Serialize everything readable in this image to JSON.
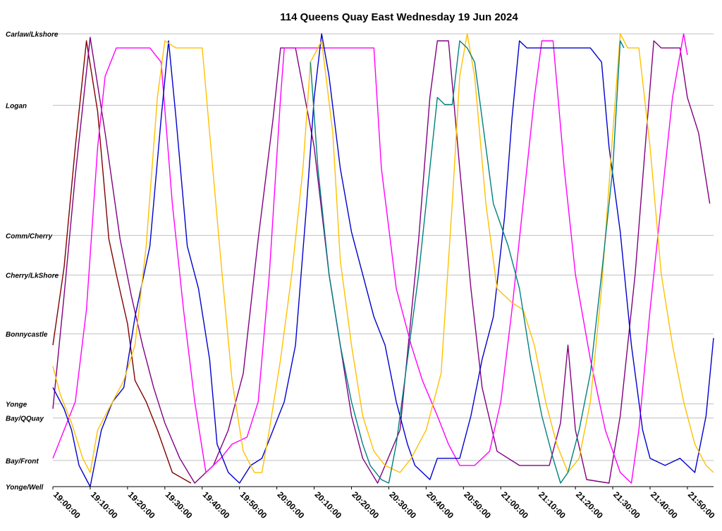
{
  "chart_data": {
    "type": "line",
    "title": "114 Queens Quay East Wednesday 19 Jun 2024",
    "xlabel": "",
    "ylabel": "",
    "x_axis": {
      "unit": "time",
      "range": [
        "19:00:00",
        "21:57:00"
      ],
      "ticks": [
        "19:00:00",
        "19:10:00",
        "19:20:00",
        "19:30:00",
        "19:40:00",
        "19:50:00",
        "20:00:00",
        "20:10:00",
        "20:20:00",
        "20:30:00",
        "20:40:00",
        "20:50:00",
        "21:00:00",
        "21:10:00",
        "21:20:00",
        "21:30:00",
        "21:40:00",
        "21:50:00"
      ]
    },
    "y_axis": {
      "type": "stops",
      "stops": [
        {
          "name": "Yonge/Well",
          "pos": 0
        },
        {
          "name": "Bay/Front",
          "pos": 3.7
        },
        {
          "name": "Bay/QQuay",
          "pos": 9.7
        },
        {
          "name": "Yonge",
          "pos": 11.7
        },
        {
          "name": "Bonnycastle",
          "pos": 21.6
        },
        {
          "name": "Cherry/LkShore",
          "pos": 29.9
        },
        {
          "name": "Comm/Cherry",
          "pos": 35.5
        },
        {
          "name": "Logan",
          "pos": 53.9
        },
        {
          "name": "Carlaw/Lkshore",
          "pos": 64
        }
      ],
      "ylim": [
        0,
        64
      ]
    },
    "grid": true,
    "legend": "none",
    "series": [
      {
        "color": "#800000",
        "points": [
          [
            "19:00",
            20
          ],
          [
            "19:03",
            31
          ],
          [
            "19:06",
            48
          ],
          [
            "19:09",
            63
          ],
          [
            "19:12",
            53
          ],
          [
            "19:15",
            35
          ],
          [
            "19:17",
            30
          ],
          [
            "19:20",
            23
          ],
          [
            "19:22",
            15
          ],
          [
            "19:25",
            12
          ],
          [
            "19:28",
            8
          ],
          [
            "19:32",
            2
          ],
          [
            "19:37",
            0.5
          ]
        ]
      },
      {
        "color": "#800080",
        "points": [
          [
            "19:00",
            11
          ],
          [
            "19:03",
            27
          ],
          [
            "19:06",
            44
          ],
          [
            "19:10",
            63.5
          ],
          [
            "19:14",
            50
          ],
          [
            "19:18",
            35
          ],
          [
            "19:21",
            27
          ],
          [
            "19:24",
            20
          ],
          [
            "19:27",
            14
          ],
          [
            "19:30",
            9
          ],
          [
            "19:34",
            4
          ],
          [
            "19:38",
            0.5
          ],
          [
            "19:43",
            3
          ],
          [
            "19:47",
            8
          ],
          [
            "19:51",
            16
          ],
          [
            "19:55",
            35
          ],
          [
            "19:59",
            52
          ],
          [
            "20:01",
            62
          ],
          [
            "20:05",
            62
          ],
          [
            "20:10",
            48
          ],
          [
            "20:14",
            30
          ],
          [
            "20:17",
            20
          ],
          [
            "20:20",
            10
          ],
          [
            "20:23",
            4
          ],
          [
            "20:27",
            0.5
          ],
          [
            "20:33",
            8
          ],
          [
            "20:38",
            35
          ],
          [
            "20:41",
            55
          ],
          [
            "20:43",
            63
          ],
          [
            "20:46",
            63
          ],
          [
            "20:49",
            45
          ],
          [
            "20:52",
            28
          ],
          [
            "20:55",
            14
          ],
          [
            "20:59",
            5
          ],
          [
            "21:05",
            3
          ],
          [
            "21:10",
            3
          ],
          [
            "21:13",
            3
          ],
          [
            "21:16",
            9
          ],
          [
            "21:18",
            20
          ],
          [
            "21:20",
            8
          ],
          [
            "21:23",
            1
          ],
          [
            "21:29",
            0.5
          ],
          [
            "21:32",
            10
          ],
          [
            "21:36",
            30
          ],
          [
            "21:39",
            50
          ],
          [
            "21:41",
            63
          ],
          [
            "21:43",
            62
          ],
          [
            "21:48",
            62
          ],
          [
            "21:50",
            55
          ],
          [
            "21:53",
            50
          ],
          [
            "21:56",
            40
          ]
        ]
      },
      {
        "color": "#ff00ff",
        "points": [
          [
            "19:00",
            4
          ],
          [
            "19:03",
            8
          ],
          [
            "19:06",
            12
          ],
          [
            "19:09",
            25
          ],
          [
            "19:12",
            48
          ],
          [
            "19:14",
            58
          ],
          [
            "19:17",
            62
          ],
          [
            "19:20",
            62
          ],
          [
            "19:23",
            62
          ],
          [
            "19:26",
            62
          ],
          [
            "19:29",
            60
          ],
          [
            "19:32",
            40
          ],
          [
            "19:35",
            25
          ],
          [
            "19:38",
            12
          ],
          [
            "19:41",
            2
          ],
          [
            "19:45",
            4
          ],
          [
            "19:48",
            6
          ],
          [
            "19:52",
            7
          ],
          [
            "19:55",
            12
          ],
          [
            "19:58",
            30
          ],
          [
            "20:01",
            55
          ],
          [
            "20:02",
            62
          ],
          [
            "20:06",
            62
          ],
          [
            "20:12",
            62
          ],
          [
            "20:18",
            62
          ],
          [
            "20:26",
            62
          ],
          [
            "20:28",
            45
          ],
          [
            "20:32",
            28
          ],
          [
            "20:36",
            20
          ],
          [
            "20:39",
            15
          ],
          [
            "20:43",
            10
          ],
          [
            "20:46",
            6
          ],
          [
            "20:49",
            3
          ],
          [
            "20:53",
            3
          ],
          [
            "20:57",
            5
          ],
          [
            "21:00",
            12
          ],
          [
            "21:03",
            25
          ],
          [
            "21:06",
            40
          ],
          [
            "21:09",
            55
          ],
          [
            "21:11",
            63
          ],
          [
            "21:14",
            63
          ],
          [
            "21:17",
            45
          ],
          [
            "21:20",
            30
          ],
          [
            "21:24",
            18
          ],
          [
            "21:28",
            8
          ],
          [
            "21:32",
            2
          ],
          [
            "21:35",
            0.5
          ],
          [
            "21:37",
            8
          ],
          [
            "21:40",
            25
          ],
          [
            "21:43",
            40
          ],
          [
            "21:46",
            55
          ],
          [
            "21:49",
            64
          ],
          [
            "21:50",
            61
          ]
        ]
      },
      {
        "color": "#0000cc",
        "points": [
          [
            "19:00",
            14
          ],
          [
            "19:03",
            11
          ],
          [
            "19:05",
            8
          ],
          [
            "19:07",
            3
          ],
          [
            "19:09",
            1
          ],
          [
            "19:10",
            0
          ],
          [
            "19:13",
            8
          ],
          [
            "19:16",
            12
          ],
          [
            "19:19",
            14
          ],
          [
            "19:22",
            24
          ],
          [
            "19:26",
            34
          ],
          [
            "19:29",
            52
          ],
          [
            "19:31",
            63
          ],
          [
            "19:33",
            52
          ],
          [
            "19:36",
            34
          ],
          [
            "19:39",
            28
          ],
          [
            "19:42",
            18
          ],
          [
            "19:44",
            6
          ],
          [
            "19:47",
            2
          ],
          [
            "19:50",
            0.5
          ],
          [
            "19:53",
            3
          ],
          [
            "19:56",
            4
          ],
          [
            "19:59",
            8
          ],
          [
            "20:02",
            12
          ],
          [
            "20:05",
            20
          ],
          [
            "20:08",
            40
          ],
          [
            "20:10",
            55
          ],
          [
            "20:12",
            64
          ],
          [
            "20:14",
            58
          ],
          [
            "20:17",
            45
          ],
          [
            "20:20",
            36
          ],
          [
            "20:23",
            30
          ],
          [
            "20:26",
            24
          ],
          [
            "20:29",
            20
          ],
          [
            "20:32",
            12
          ],
          [
            "20:35",
            6
          ],
          [
            "20:37",
            3
          ],
          [
            "20:39",
            2
          ],
          [
            "20:41",
            1
          ],
          [
            "20:43",
            4
          ],
          [
            "20:46",
            4
          ],
          [
            "20:49",
            4
          ],
          [
            "20:52",
            10
          ],
          [
            "20:55",
            18
          ],
          [
            "20:58",
            24
          ],
          [
            "21:01",
            38
          ],
          [
            "21:03",
            52
          ],
          [
            "21:05",
            63
          ],
          [
            "21:07",
            62
          ],
          [
            "21:11",
            62
          ],
          [
            "21:16",
            62
          ],
          [
            "21:21",
            62
          ],
          [
            "21:24",
            62
          ],
          [
            "21:27",
            60
          ],
          [
            "21:29",
            48
          ],
          [
            "21:32",
            36
          ],
          [
            "21:35",
            20
          ],
          [
            "21:38",
            8
          ],
          [
            "21:40",
            4
          ],
          [
            "21:44",
            3
          ],
          [
            "21:48",
            4
          ],
          [
            "21:52",
            2
          ],
          [
            "21:55",
            10
          ],
          [
            "21:57",
            21
          ]
        ]
      },
      {
        "color": "#ffc000",
        "points": [
          [
            "19:00",
            17
          ],
          [
            "19:02",
            13
          ],
          [
            "19:05",
            9
          ],
          [
            "19:08",
            4
          ],
          [
            "19:10",
            2
          ],
          [
            "19:12",
            8
          ],
          [
            "19:16",
            12
          ],
          [
            "19:19",
            15
          ],
          [
            "19:22",
            20
          ],
          [
            "19:25",
            34
          ],
          [
            "19:28",
            55
          ],
          [
            "19:30",
            63
          ],
          [
            "19:33",
            62
          ],
          [
            "19:37",
            62
          ],
          [
            "19:40",
            62
          ],
          [
            "19:42",
            50
          ],
          [
            "19:45",
            32
          ],
          [
            "19:48",
            15
          ],
          [
            "19:51",
            5
          ],
          [
            "19:54",
            2
          ],
          [
            "19:56",
            2
          ],
          [
            "19:58",
            8
          ],
          [
            "20:01",
            18
          ],
          [
            "20:04",
            30
          ],
          [
            "20:07",
            45
          ],
          [
            "20:09",
            60
          ],
          [
            "20:12",
            63
          ],
          [
            "20:15",
            50
          ],
          [
            "20:17",
            32
          ],
          [
            "20:20",
            20
          ],
          [
            "20:23",
            10
          ],
          [
            "20:26",
            5
          ],
          [
            "20:29",
            3
          ],
          [
            "20:33",
            2
          ],
          [
            "20:36",
            4
          ],
          [
            "20:40",
            8
          ],
          [
            "20:44",
            16
          ],
          [
            "20:47",
            40
          ],
          [
            "20:49",
            58
          ],
          [
            "20:51",
            64
          ],
          [
            "20:53",
            58
          ],
          [
            "20:56",
            40
          ],
          [
            "20:59",
            28
          ],
          [
            "21:03",
            26
          ],
          [
            "21:06",
            25
          ],
          [
            "21:09",
            20
          ],
          [
            "21:12",
            12
          ],
          [
            "21:15",
            6
          ],
          [
            "21:18",
            2
          ],
          [
            "21:21",
            4
          ],
          [
            "21:24",
            12
          ],
          [
            "21:27",
            28
          ],
          [
            "21:30",
            50
          ],
          [
            "21:32",
            64
          ],
          [
            "21:34",
            62
          ],
          [
            "21:37",
            62
          ],
          [
            "21:40",
            48
          ],
          [
            "21:43",
            30
          ],
          [
            "21:46",
            20
          ],
          [
            "21:49",
            12
          ],
          [
            "21:52",
            6
          ],
          [
            "21:55",
            3
          ],
          [
            "21:57",
            2
          ]
        ]
      },
      {
        "color": "#008080",
        "points": [
          [
            "20:09",
            60
          ],
          [
            "20:11",
            45
          ],
          [
            "20:14",
            30
          ],
          [
            "20:17",
            20
          ],
          [
            "20:20",
            12
          ],
          [
            "20:23",
            6
          ],
          [
            "20:25",
            3
          ],
          [
            "20:28",
            1
          ],
          [
            "20:30",
            0.5
          ],
          [
            "20:32",
            6
          ],
          [
            "20:35",
            18
          ],
          [
            "20:38",
            30
          ],
          [
            "20:41",
            45
          ],
          [
            "20:43",
            55
          ],
          [
            "20:45",
            54
          ],
          [
            "20:47",
            54
          ],
          [
            "20:49",
            63
          ],
          [
            "20:51",
            62
          ],
          [
            "20:53",
            60
          ],
          [
            "20:55",
            52
          ],
          [
            "20:58",
            40
          ],
          [
            "21:02",
            34
          ],
          [
            "21:05",
            28
          ],
          [
            "21:08",
            18
          ],
          [
            "21:11",
            10
          ],
          [
            "21:14",
            4
          ],
          [
            "21:16",
            0.5
          ],
          [
            "21:18",
            2
          ],
          [
            "21:21",
            8
          ],
          [
            "21:24",
            16
          ],
          [
            "21:27",
            30
          ],
          [
            "21:30",
            45
          ],
          [
            "21:32",
            63
          ],
          [
            "21:33",
            62
          ]
        ]
      }
    ]
  }
}
